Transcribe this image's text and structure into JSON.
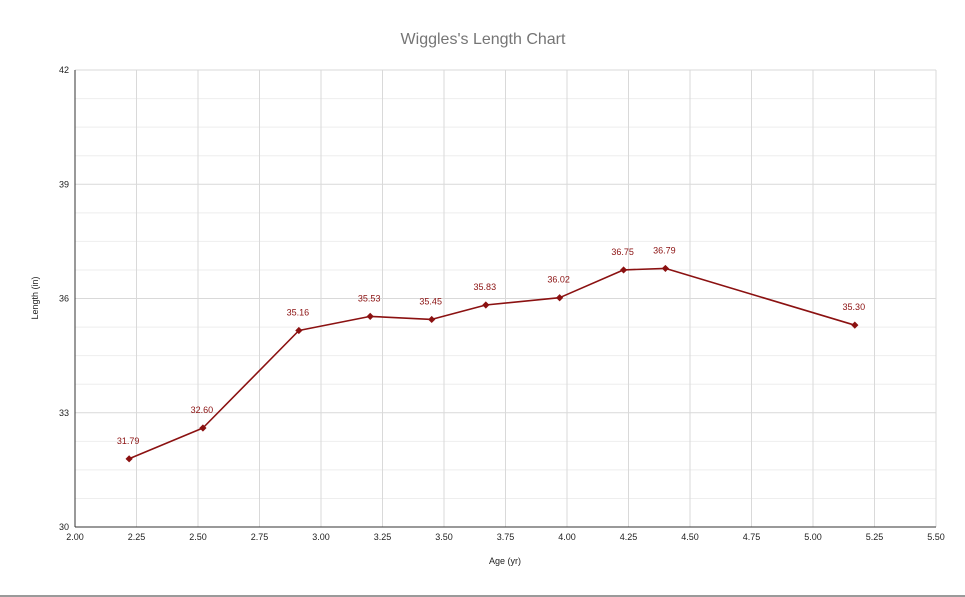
{
  "chart_data": {
    "type": "line",
    "title": "Wiggles's Length Chart",
    "xlabel": "Age (yr)",
    "ylabel": "Length (in)",
    "xlim": [
      2.0,
      5.5
    ],
    "ylim": [
      30,
      42
    ],
    "x_ticks": [
      "2.00",
      "2.25",
      "2.50",
      "2.75",
      "3.00",
      "3.25",
      "3.50",
      "3.75",
      "4.00",
      "4.25",
      "4.50",
      "4.75",
      "5.00",
      "5.25",
      "5.50"
    ],
    "y_ticks": [
      "30",
      "33",
      "36",
      "39",
      "42"
    ],
    "grid": true,
    "legend": "none",
    "series": [
      {
        "color": "#8b1111",
        "marker": "diamond",
        "x": [
          2.22,
          2.52,
          2.91,
          3.2,
          3.45,
          3.67,
          3.97,
          4.23,
          4.4,
          5.17
        ],
        "y": [
          31.79,
          32.6,
          35.16,
          35.53,
          35.45,
          35.83,
          36.02,
          36.75,
          36.79,
          35.3
        ],
        "labels": [
          "31.79",
          "32.60",
          "35.16",
          "35.53",
          "35.45",
          "35.83",
          "36.02",
          "36.75",
          "36.79",
          "35.30"
        ]
      }
    ]
  },
  "colors": {
    "title": "#757575",
    "axis_text": "#222222",
    "grid_major": "#d9d9d9",
    "grid_minor": "#eeeeee",
    "axis_line": "#333333",
    "series": "#8b1111"
  }
}
